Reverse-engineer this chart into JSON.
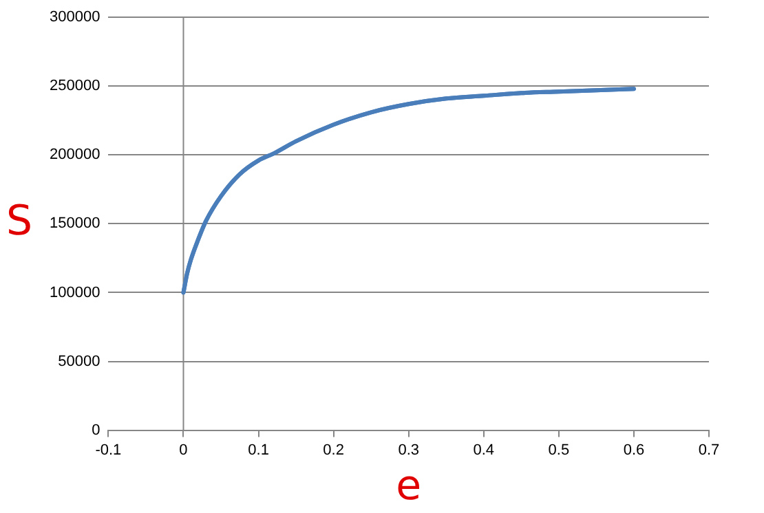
{
  "chart_data": {
    "type": "line",
    "xlabel": "e",
    "ylabel": "S",
    "x": [
      0,
      0.005,
      0.01,
      0.02,
      0.03,
      0.05,
      0.075,
      0.1,
      0.12,
      0.15,
      0.2,
      0.25,
      0.3,
      0.35,
      0.4,
      0.45,
      0.5,
      0.55,
      0.6
    ],
    "series": [
      {
        "color": "#4a7ebb",
        "values": [
          100000,
          114000,
          124000,
          139000,
          152000,
          170000,
          186000,
          196000,
          201000,
          210000,
          222000,
          231000,
          237000,
          241000,
          243000,
          245000,
          246000,
          247000,
          248000
        ]
      }
    ],
    "xlim": [
      -0.1,
      0.7
    ],
    "xticks": [
      -0.1,
      0,
      0.1,
      0.2,
      0.3,
      0.4,
      0.5,
      0.6,
      0.7
    ],
    "ylim": [
      0,
      300000
    ],
    "yticks": [
      0,
      50000,
      100000,
      150000,
      200000,
      250000,
      300000
    ],
    "ref_lines": [
      {
        "axis": "x",
        "value": 0,
        "color": "#868686"
      }
    ],
    "grid": "y",
    "legend": false,
    "marker": "none",
    "line_style": "solid"
  }
}
